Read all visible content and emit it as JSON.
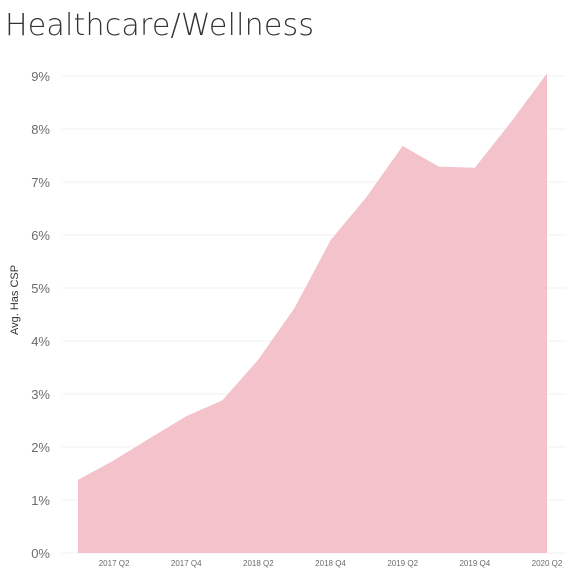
{
  "chart_data": {
    "type": "area",
    "title": "Healthcare/Wellness",
    "ylabel": "Avg. Has CSP",
    "xlabel": "",
    "x": [
      "2017 Q1",
      "2017 Q2",
      "2017 Q3",
      "2017 Q4",
      "2018 Q1",
      "2018 Q2",
      "2018 Q3",
      "2018 Q4",
      "2019 Q1",
      "2019 Q2",
      "2019 Q3",
      "2019 Q4",
      "2020 Q1",
      "2020 Q2"
    ],
    "x_tick_labels": [
      "2017 Q2",
      "2017 Q4",
      "2018 Q2",
      "2018 Q4",
      "2019 Q2",
      "2019 Q4",
      "2020 Q2"
    ],
    "x_tick_positions": [
      "2017 Q2",
      "2017 Q4",
      "2018 Q2",
      "2018 Q4",
      "2019 Q2",
      "2019 Q4",
      "2020 Q2"
    ],
    "values": [
      1.38,
      1.75,
      2.17,
      2.58,
      2.88,
      3.65,
      4.62,
      5.9,
      6.72,
      7.68,
      7.29,
      7.27,
      8.13,
      9.05
    ],
    "y_ticks": [
      0,
      1,
      2,
      3,
      4,
      5,
      6,
      7,
      8,
      9
    ],
    "y_tick_labels": [
      "0%",
      "1%",
      "2%",
      "3%",
      "4%",
      "5%",
      "6%",
      "7%",
      "8%",
      "9%"
    ],
    "ylim": [
      0,
      9
    ],
    "unit": "%",
    "grid": true,
    "fill_color": "#f4c2ca"
  }
}
